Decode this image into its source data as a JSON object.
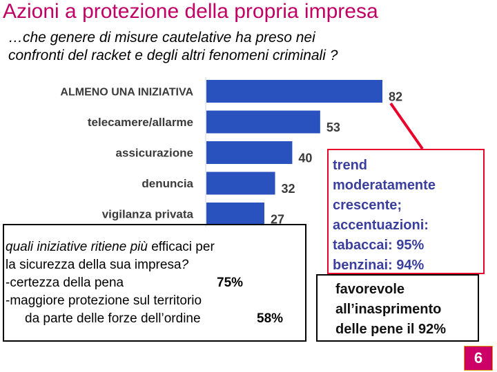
{
  "slide": {
    "title": "Azioni a protezione della propria impresa",
    "subtitle_line1": "…che genere di misure cautelative ha preso nei",
    "subtitle_line2": "confronti del racket e degli altri fenomeni criminali ?",
    "page_number": "6"
  },
  "colors": {
    "title": "#c00064",
    "bar": "#2a52be",
    "trend_text": "#3a3e9c",
    "trend_border": "#e8002a",
    "page_bg": "#cc0066"
  },
  "chart_data": {
    "type": "bar",
    "orientation": "horizontal",
    "categories": [
      "ALMENO UNA INIZIATIVA",
      "telecamere/allarme",
      "assicurazione",
      "denuncia",
      "vigilanza privata"
    ],
    "values": [
      82,
      53,
      40,
      32,
      27
    ],
    "title": "",
    "xlabel": "",
    "ylabel": "",
    "xlim": [
      0,
      100
    ],
    "grid": false,
    "legend": "none"
  },
  "question": {
    "line1_italic": "quali iniziative ritiene più",
    "line1_normal": "efficaci per",
    "line2_normal": "la sicurezza della sua impresa",
    "line2_italic": "?",
    "line3": "-certezza della pena",
    "line3_pct": "75%",
    "line4": "-maggiore protezione sul territorio",
    "line5": "da parte delle forze dell’ordine",
    "line5_pct": "58%"
  },
  "trend": {
    "lines": [
      "trend",
      "moderatamente",
      "crescente;",
      "accentuazioni:",
      "tabaccai: 95%",
      "benzinai: 94%"
    ]
  },
  "favorevole": {
    "lines": [
      "favorevole",
      "all’inasprimento",
      "delle pene il 92%"
    ]
  }
}
